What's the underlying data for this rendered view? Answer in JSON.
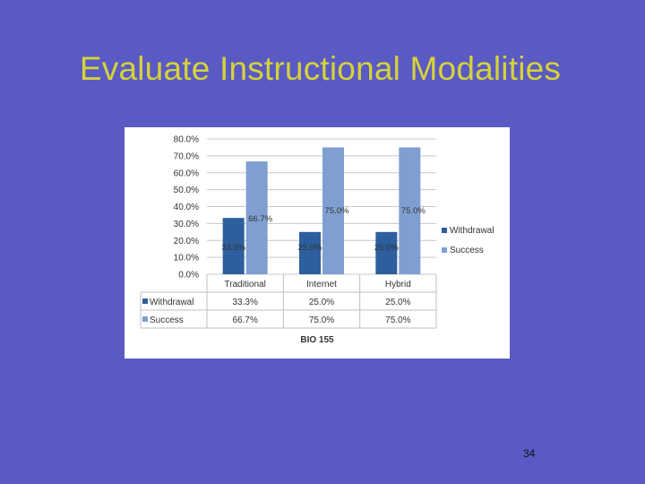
{
  "slide": {
    "title": "Evaluate Instructional Modalities",
    "page_number": "34"
  },
  "colors": {
    "background": "#5a5ac4",
    "title": "#d6d23a",
    "withdrawal": "#2d5f9e",
    "success": "#7f9fd1"
  },
  "chart_data": {
    "type": "bar",
    "xlabel": "BIO 155",
    "categories": [
      "Traditional",
      "Internet",
      "Hybrid"
    ],
    "ylim": [
      0,
      80
    ],
    "yticks": [
      "0.0%",
      "10.0%",
      "20.0%",
      "30.0%",
      "40.0%",
      "50.0%",
      "60.0%",
      "70.0%",
      "80.0%"
    ],
    "grid": true,
    "legend_position": "right",
    "series": [
      {
        "name": "Withdrawal",
        "values": [
          33.3,
          25.0,
          25.0
        ],
        "labels": [
          "33.3%",
          "25.0%",
          "25.0%"
        ]
      },
      {
        "name": "Success",
        "values": [
          66.7,
          75.0,
          75.0
        ],
        "labels": [
          "66.7%",
          "75.0%",
          "75.0%"
        ]
      }
    ],
    "data_table": true
  }
}
